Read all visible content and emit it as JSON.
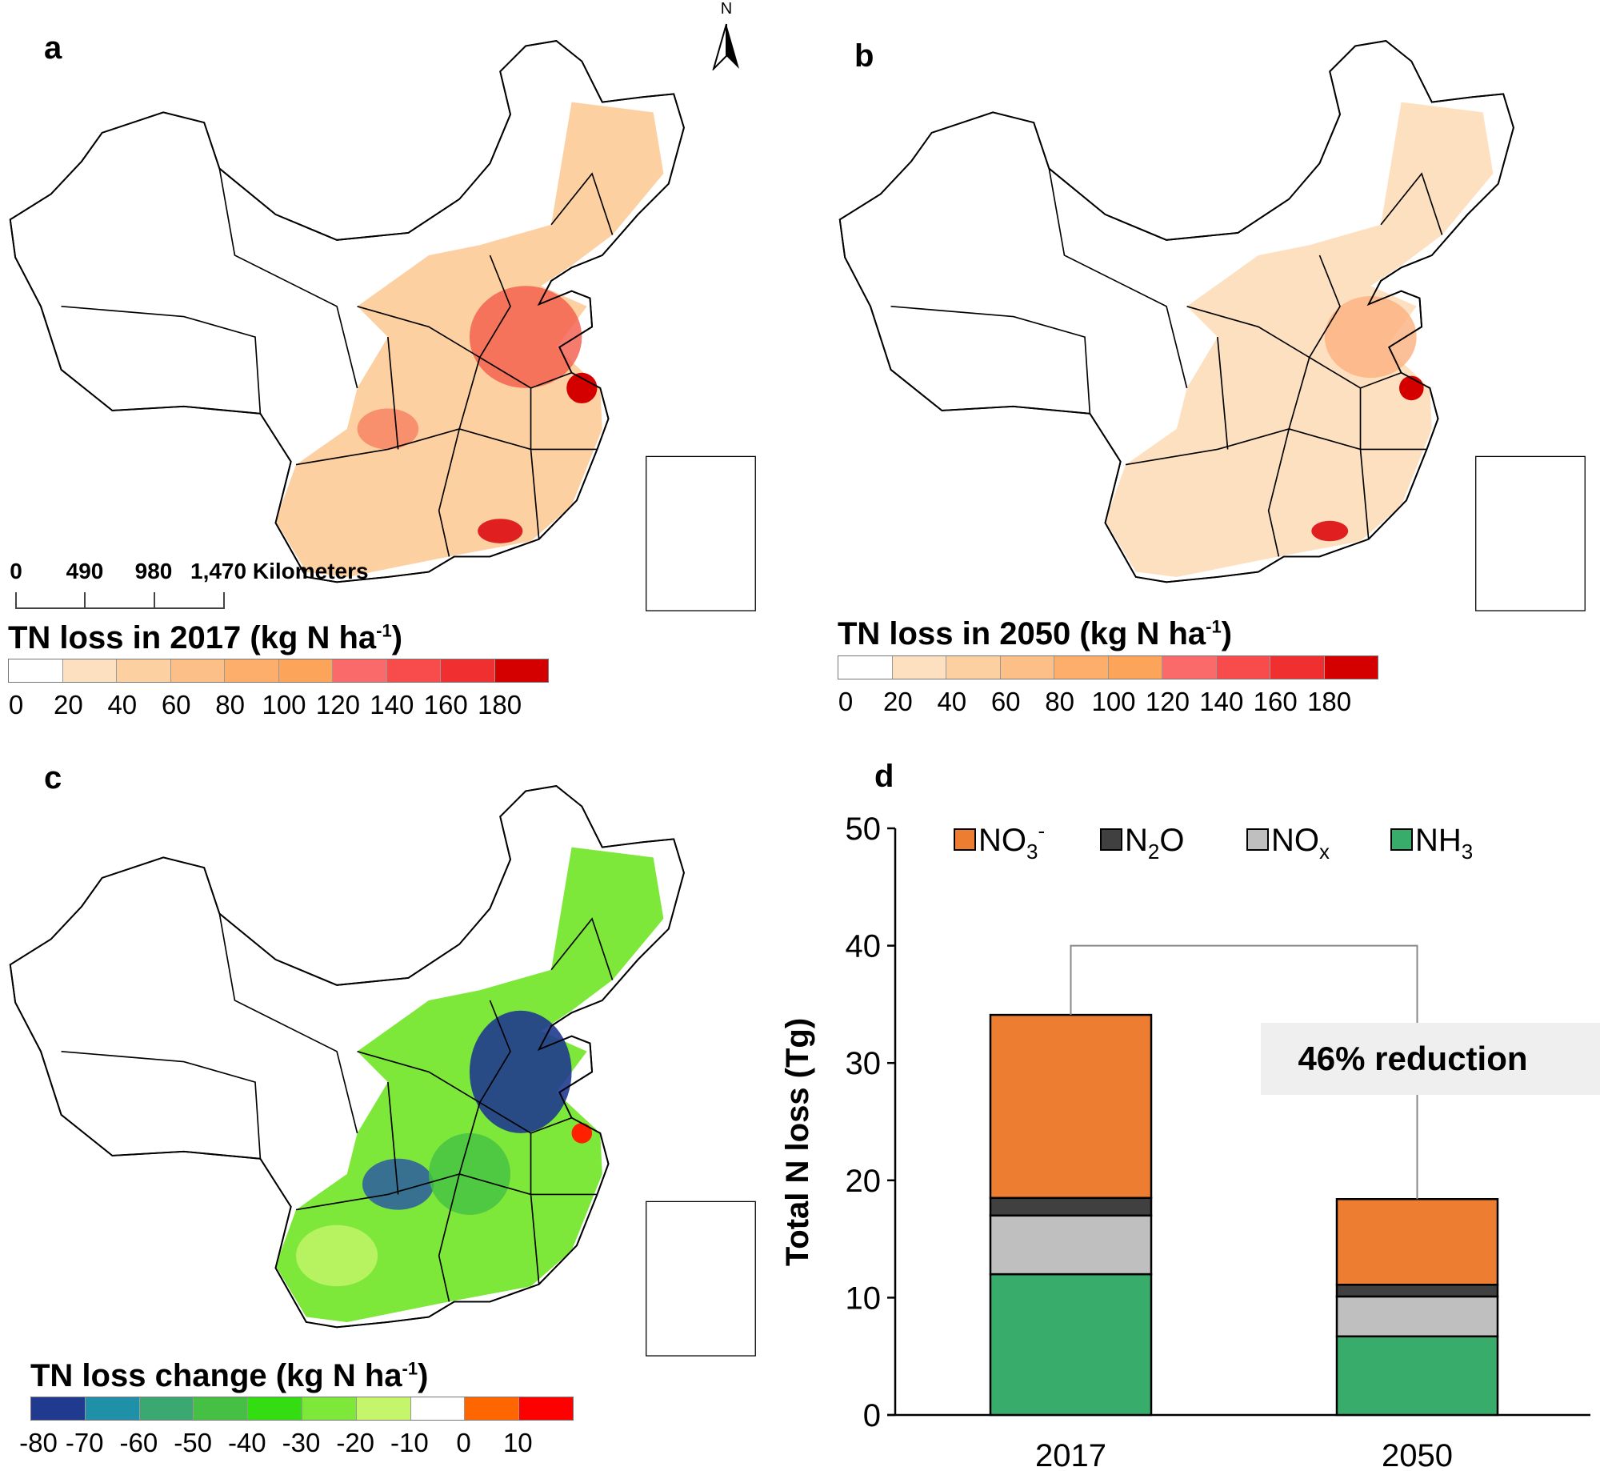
{
  "panels": {
    "a": {
      "label": "a",
      "legend_title": "TN loss in 2017 (kg N ha",
      "legend_sup": "-1",
      "legend_close": ")",
      "colors": [
        "#ffffff",
        "#fde0c0",
        "#fdd0a2",
        "#fdbf88",
        "#fdae6b",
        "#fca45a",
        "#fb6a6a",
        "#f84c4c",
        "#f03030",
        "#d40000"
      ],
      "ticks": [
        "0",
        "20",
        "40",
        "60",
        "80",
        "100",
        "120",
        "140",
        "160",
        "180"
      ]
    },
    "b": {
      "label": "b",
      "legend_title": "TN loss in 2050 (kg N ha",
      "legend_sup": "-1",
      "legend_close": ")",
      "colors": [
        "#ffffff",
        "#fde0c0",
        "#fdd0a2",
        "#fdbf88",
        "#fdae6b",
        "#fca45a",
        "#fb6a6a",
        "#f84c4c",
        "#f03030",
        "#d40000"
      ],
      "ticks": [
        "0",
        "20",
        "40",
        "60",
        "80",
        "100",
        "120",
        "140",
        "160",
        "180"
      ]
    },
    "c": {
      "label": "c",
      "legend_title": "TN loss change (kg N ha",
      "legend_sup": "-1",
      "legend_close": ")",
      "colors": [
        "#1f3a8f",
        "#2090a8",
        "#3aa870",
        "#45c045",
        "#33dd11",
        "#7ee83a",
        "#c5f56a",
        "#ffffff",
        "#ff6600",
        "#ff0000"
      ],
      "ticks": [
        "-80",
        "-70",
        "-60",
        "-50",
        "-40",
        "-30",
        "-20",
        "-10",
        "0",
        "10"
      ]
    },
    "d": {
      "label": "d"
    }
  },
  "scale_bar": {
    "ticks": [
      "0",
      "490",
      "980",
      "1,470 Kilometers"
    ]
  },
  "north_arrow": {
    "label": "N",
    "icon": "north-arrow-icon"
  },
  "chart_data": {
    "type": "bar",
    "stacked": true,
    "categories": [
      "2017",
      "2050"
    ],
    "series": [
      {
        "name": "NH3",
        "label_main": "NH",
        "label_sub": "3",
        "color": "#38ad6b",
        "values": [
          12.0,
          6.7
        ]
      },
      {
        "name": "NOx",
        "label_main": "NO",
        "label_sub": "x",
        "color": "#bfbfbf",
        "values": [
          5.0,
          3.4
        ]
      },
      {
        "name": "N2O",
        "label_main": "N",
        "label_sub": "2",
        "label_tail": "O",
        "color": "#404040",
        "values": [
          1.5,
          1.0
        ]
      },
      {
        "name": "NO3-",
        "label_main": "NO",
        "label_sub": "3",
        "label_sup": "-",
        "color": "#ed7d31",
        "values": [
          15.6,
          7.3
        ]
      }
    ],
    "ylabel": "Total N loss (Tg)",
    "ylim": [
      0,
      50
    ],
    "yticks": [
      "0",
      "10",
      "20",
      "30",
      "40",
      "50"
    ],
    "grid": false,
    "legend_position": "top",
    "annotation": "46% reduction"
  }
}
